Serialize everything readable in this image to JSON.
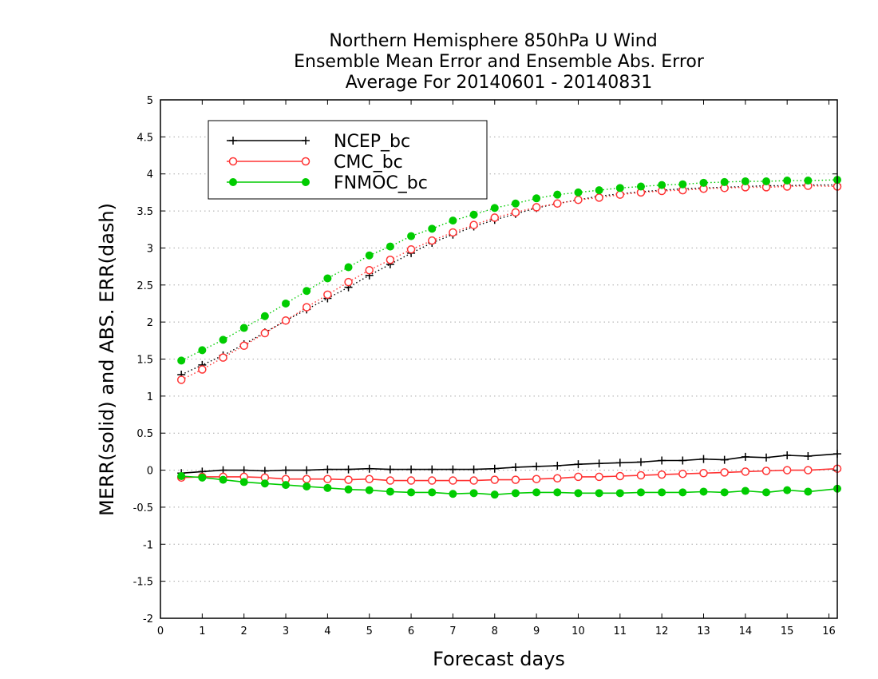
{
  "chart_data": {
    "type": "line",
    "title_lines": [
      "Northern Hemisphere 850hPa U Wind",
      "Ensemble Mean Error and Ensemble Abs. Error",
      "Average For 20140601 - 20140831"
    ],
    "xlabel": "Forecast days",
    "ylabel": "MERR(solid) and ABS. ERR(dash)",
    "xlim": [
      0,
      16.2
    ],
    "ylim": [
      -2,
      5
    ],
    "xticks": [
      0,
      1,
      2,
      3,
      4,
      5,
      6,
      7,
      8,
      9,
      10,
      11,
      12,
      13,
      14,
      15,
      16
    ],
    "yticks": [
      -2,
      -1.5,
      -1,
      -0.5,
      0,
      0.5,
      1,
      1.5,
      2,
      2.5,
      3,
      3.5,
      4,
      4.5,
      5
    ],
    "ytick_labels": [
      "-2",
      "-1.5",
      "-1",
      "-0.5",
      "0",
      "0.5",
      "1",
      "1.5",
      "2",
      "2.5",
      "3",
      "3.5",
      "4",
      "4.5",
      "5"
    ],
    "grid": "horizontal-dotted",
    "legend_position": "top-left",
    "x": [
      0.5,
      1,
      1.5,
      2,
      2.5,
      3,
      3.5,
      4,
      4.5,
      5,
      5.5,
      6,
      6.5,
      7,
      7.5,
      8,
      8.5,
      9,
      9.5,
      10,
      10.5,
      11,
      11.5,
      12,
      12.5,
      13,
      13.5,
      14,
      14.5,
      15,
      15.5,
      16.2
    ],
    "series": [
      {
        "name": "NCEP_bc",
        "color": "#000000",
        "marker": "plus",
        "mean_error": [
          -0.04,
          -0.02,
          0.0,
          0.0,
          -0.01,
          0.0,
          0.0,
          0.01,
          0.01,
          0.02,
          0.01,
          0.01,
          0.01,
          0.01,
          0.01,
          0.02,
          0.04,
          0.05,
          0.06,
          0.08,
          0.09,
          0.1,
          0.11,
          0.13,
          0.13,
          0.15,
          0.14,
          0.18,
          0.17,
          0.2,
          0.19,
          0.22
        ],
        "abs_error": [
          1.29,
          1.42,
          1.55,
          1.7,
          1.86,
          2.02,
          2.17,
          2.32,
          2.47,
          2.63,
          2.78,
          2.93,
          3.07,
          3.18,
          3.29,
          3.38,
          3.46,
          3.54,
          3.6,
          3.65,
          3.7,
          3.73,
          3.76,
          3.78,
          3.8,
          3.81,
          3.82,
          3.83,
          3.84,
          3.84,
          3.85,
          3.85
        ]
      },
      {
        "name": "CMC_bc",
        "color": "#ff3333",
        "marker": "open-circle",
        "mean_error": [
          -0.1,
          -0.09,
          -0.09,
          -0.09,
          -0.1,
          -0.12,
          -0.12,
          -0.12,
          -0.13,
          -0.12,
          -0.14,
          -0.14,
          -0.14,
          -0.14,
          -0.14,
          -0.13,
          -0.13,
          -0.12,
          -0.11,
          -0.09,
          -0.09,
          -0.08,
          -0.07,
          -0.06,
          -0.05,
          -0.04,
          -0.03,
          -0.02,
          -0.01,
          0.0,
          0.0,
          0.02
        ],
        "abs_error": [
          1.22,
          1.36,
          1.52,
          1.68,
          1.85,
          2.02,
          2.2,
          2.37,
          2.54,
          2.7,
          2.84,
          2.98,
          3.1,
          3.21,
          3.31,
          3.41,
          3.48,
          3.55,
          3.6,
          3.65,
          3.68,
          3.72,
          3.75,
          3.77,
          3.78,
          3.8,
          3.81,
          3.82,
          3.82,
          3.83,
          3.84,
          3.83
        ]
      },
      {
        "name": "FNMOC_bc",
        "color": "#00cc00",
        "marker": "filled-circle",
        "mean_error": [
          -0.08,
          -0.1,
          -0.13,
          -0.16,
          -0.18,
          -0.2,
          -0.22,
          -0.24,
          -0.26,
          -0.27,
          -0.29,
          -0.3,
          -0.3,
          -0.32,
          -0.31,
          -0.33,
          -0.31,
          -0.3,
          -0.3,
          -0.31,
          -0.31,
          -0.31,
          -0.3,
          -0.3,
          -0.3,
          -0.29,
          -0.3,
          -0.28,
          -0.3,
          -0.27,
          -0.29,
          -0.25
        ],
        "abs_error": [
          1.48,
          1.62,
          1.76,
          1.92,
          2.08,
          2.25,
          2.42,
          2.59,
          2.74,
          2.9,
          3.02,
          3.16,
          3.26,
          3.37,
          3.45,
          3.54,
          3.6,
          3.67,
          3.72,
          3.75,
          3.78,
          3.81,
          3.83,
          3.85,
          3.86,
          3.88,
          3.89,
          3.9,
          3.9,
          3.91,
          3.91,
          3.92
        ]
      }
    ]
  }
}
